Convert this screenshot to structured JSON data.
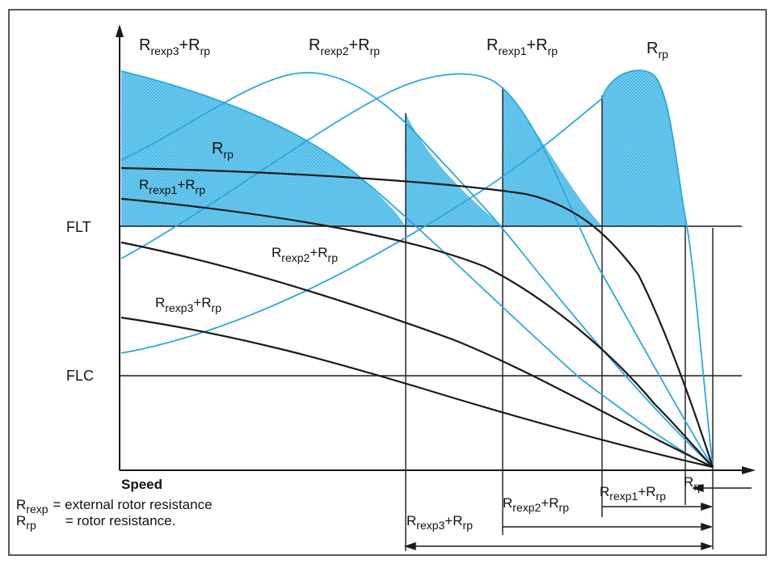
{
  "top_labels": {
    "r3": {
      "main": "R",
      "sub": "rexp3",
      "plus": "+R",
      "sub2": "rp"
    },
    "r2": {
      "main": "R",
      "sub": "rexp2",
      "plus": "+R",
      "sub2": "rp"
    },
    "r1": {
      "main": "R",
      "sub": "rexp1",
      "plus": "+R",
      "sub2": "rp"
    },
    "r0": {
      "main": "R",
      "sub": "rp"
    }
  },
  "torque_labels": {
    "r0": {
      "main": "R",
      "sub": "rp"
    },
    "r1": {
      "main": "R",
      "sub": "rexp1",
      "plus": "+R",
      "sub2": "rp"
    },
    "r2": {
      "main": "R",
      "sub": "rexp2",
      "plus": "+R",
      "sub2": "rp"
    },
    "r3": {
      "main": "R",
      "sub": "rexp3",
      "plus": "+R",
      "sub2": "rp"
    }
  },
  "axis": {
    "flt": "FLT",
    "flc": "FLC",
    "speed": "Speed"
  },
  "legend": {
    "line1_main": "R",
    "line1_sub": "rexp",
    "line1_text": "= external rotor resistance",
    "line2_main": "R",
    "line2_sub": "rp",
    "line2_text": "= rotor resistance."
  },
  "range_labels": {
    "r0": {
      "main": "R",
      "sub": "rp"
    },
    "r1": {
      "main": "R",
      "sub": "rexp1",
      "plus": "+R",
      "sub2": "rp"
    },
    "r2": {
      "main": "R",
      "sub": "rexp2",
      "plus": "+R",
      "sub2": "rp"
    },
    "r3": {
      "main": "R",
      "sub": "rexp3",
      "plus": "+R",
      "sub2": "rp"
    }
  },
  "colors": {
    "blue": "#2aa8e0",
    "fill": "#5cc3ea",
    "black": "#1a1a1a",
    "frame": "#222222"
  }
}
